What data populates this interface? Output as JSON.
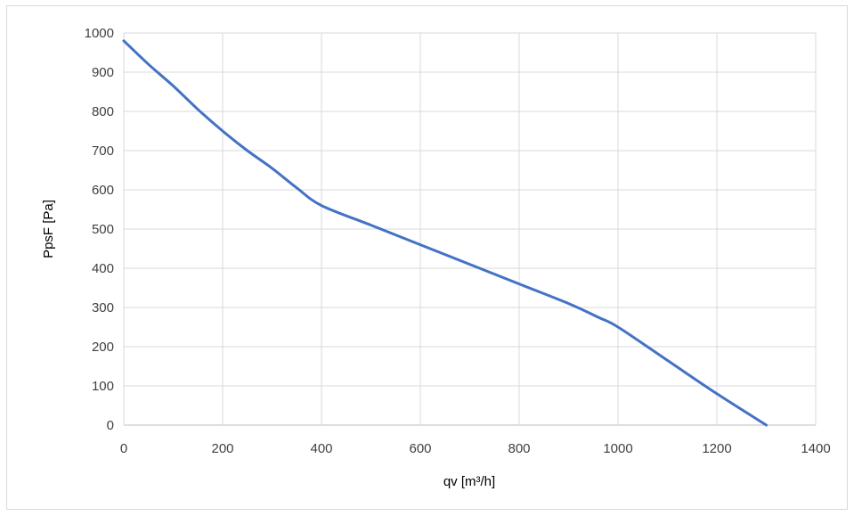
{
  "chart_data": {
    "type": "line",
    "xlabel": "qv [m³/h]",
    "ylabel": "PpsF [Pa]",
    "xlim": [
      0,
      1400
    ],
    "ylim": [
      0,
      1000
    ],
    "x_ticks": [
      0,
      200,
      400,
      600,
      800,
      1000,
      1200,
      1400
    ],
    "y_ticks": [
      0,
      100,
      200,
      300,
      400,
      500,
      600,
      700,
      800,
      900,
      1000
    ],
    "x_tick_labels": [
      "0",
      "200",
      "400",
      "600",
      "800",
      "1000",
      "1200",
      "1400"
    ],
    "y_tick_labels": [
      "0",
      "100",
      "200",
      "300",
      "400",
      "500",
      "600",
      "700",
      "800",
      "900",
      "1000"
    ],
    "grid": true,
    "legend": "none",
    "series": [
      {
        "color": "#4472c4",
        "x": [
          0,
          50,
          100,
          150,
          200,
          250,
          300,
          350,
          400,
          500,
          600,
          700,
          800,
          900,
          960,
          1000,
          1100,
          1200,
          1300
        ],
        "y": [
          980,
          920,
          865,
          805,
          750,
          700,
          655,
          605,
          560,
          510,
          460,
          410,
          360,
          310,
          275,
          250,
          165,
          80,
          0
        ]
      }
    ]
  }
}
